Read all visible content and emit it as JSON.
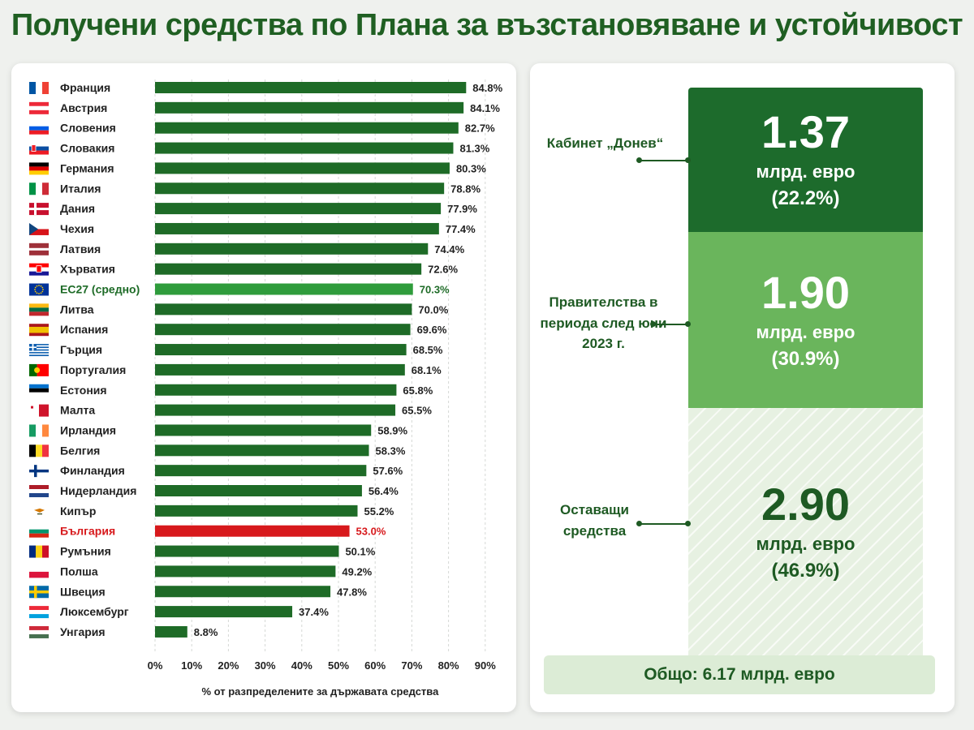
{
  "title": "Получени средства по Плана за възстановяване и устойчивост",
  "colors": {
    "bar": "#1e6b27",
    "eu_bar": "#2f9c3c",
    "eu_label": "#1e6b27",
    "bulgaria": "#d7191c",
    "dark_green": "#1d6b2c",
    "light_green": "#6ab55c"
  },
  "chart_data": {
    "type": "bar",
    "orientation": "horizontal",
    "categories": [
      "Франция",
      "Австрия",
      "Словения",
      "Словакия",
      "Германия",
      "Италия",
      "Дания",
      "Чехия",
      "Латвия",
      "Хърватия",
      "ЕС27 (средно)",
      "Литва",
      "Испания",
      "Гърция",
      "Португалия",
      "Естония",
      "Малта",
      "Ирландия",
      "Белгия",
      "Финландия",
      "Нидерландия",
      "Кипър",
      "България",
      "Румъния",
      "Полша",
      "Швеция",
      "Люксембург",
      "Унгария"
    ],
    "values": [
      84.8,
      84.1,
      82.7,
      81.3,
      80.3,
      78.8,
      77.9,
      77.4,
      74.4,
      72.6,
      70.3,
      70.0,
      69.6,
      68.5,
      68.1,
      65.8,
      65.5,
      58.9,
      58.3,
      57.6,
      56.4,
      55.2,
      53.0,
      50.1,
      49.2,
      47.8,
      37.4,
      8.8
    ],
    "value_labels": [
      "84.8%",
      "84.1%",
      "82.7%",
      "81.3%",
      "80.3%",
      "78.8%",
      "77.9%",
      "77.4%",
      "74.4%",
      "72.6%",
      "70.3%",
      "70.0%",
      "69.6%",
      "68.5%",
      "68.1%",
      "65.8%",
      "65.5%",
      "58.9%",
      "58.3%",
      "57.6%",
      "56.4%",
      "55.2%",
      "53.0%",
      "50.1%",
      "49.2%",
      "47.8%",
      "37.4%",
      "8.8%"
    ],
    "flags": [
      "france",
      "austria",
      "slovenia",
      "slovakia",
      "germany",
      "italy",
      "denmark",
      "czechia",
      "latvia",
      "croatia",
      "eu",
      "lithuania",
      "spain",
      "greece",
      "portugal",
      "estonia",
      "malta",
      "ireland",
      "belgium",
      "finland",
      "netherlands",
      "cyprus",
      "bulgaria",
      "romania",
      "poland",
      "sweden",
      "luxembourg",
      "hungary"
    ],
    "highlight": {
      "ЕС27 (средно)": "eu",
      "България": "bulgaria"
    },
    "xlim": [
      0,
      90
    ],
    "xticks": [
      "0%",
      "10%",
      "20%",
      "30%",
      "40%",
      "50%",
      "60%",
      "70%",
      "80%",
      "90%"
    ],
    "xlabel": "% от разпределените за държавата средства",
    "grid": "vertical dashed"
  },
  "breakdown": {
    "segments": [
      {
        "label": "Кабинет „Донев“",
        "value": "1.37",
        "unit": "млрд. евро",
        "pct": "(22.2%)"
      },
      {
        "label": "Правителства в периода след юни 2023 г.",
        "value": "1.90",
        "unit": "млрд. евро",
        "pct": "(30.9%)"
      },
      {
        "label": "Оставащи средства",
        "value": "2.90",
        "unit": "млрд. евро",
        "pct": "(46.9%)"
      }
    ],
    "total": "Общо: 6.17 млрд. евро"
  }
}
